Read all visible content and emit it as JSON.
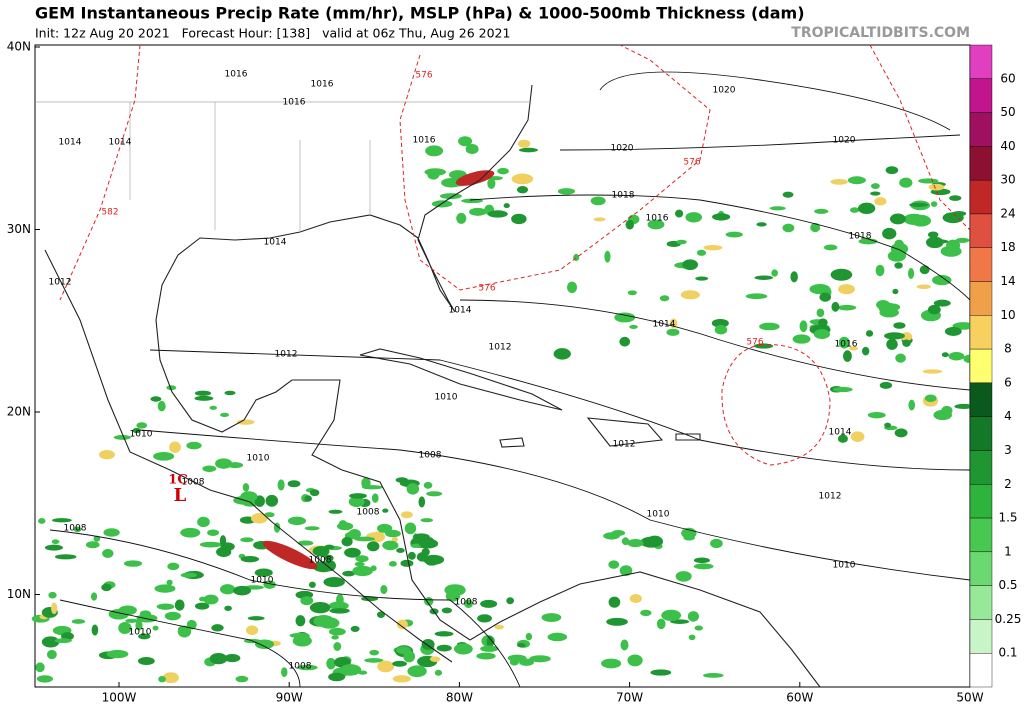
{
  "header": {
    "title": "GEM Instantaneous Precip Rate (mm/hr), MSLP (hPa) & 1000-500mb Thickness (dam)",
    "subtitle": "Init: 12z Aug 20 2021   Forecast Hour: [138]   valid at 06z Thu, Aug 26 2021",
    "source": "TROPICALTIDBITS.COM"
  },
  "map": {
    "lat_labels": [
      "40N",
      "30N",
      "20N",
      "10N"
    ],
    "lon_labels": [
      "100W",
      "90W",
      "80W",
      "70W",
      "60W",
      "50W"
    ],
    "storm_label": "L",
    "storm_number": "1C",
    "isobar_labels": [
      "1016",
      "1016",
      "1016",
      "1014",
      "1014",
      "1016",
      "1020",
      "1020",
      "1020",
      "1018",
      "1016",
      "1018",
      "1014",
      "1012",
      "1014",
      "1014",
      "1012",
      "1012",
      "1016",
      "1010",
      "1010",
      "1012",
      "1014",
      "1010",
      "1008",
      "1008",
      "1008",
      "1012",
      "1010",
      "1010",
      "1008",
      "1008",
      "1010",
      "1008",
      "1010",
      "1008"
    ],
    "thickness_labels": [
      "576",
      "582",
      "576",
      "576",
      "576"
    ]
  },
  "colorbar": {
    "labels": [
      "60",
      "50",
      "40",
      "30",
      "24",
      "18",
      "14",
      "10",
      "8",
      "6",
      "4",
      "3",
      "2",
      "1.5",
      "1",
      "0.5",
      "0.25",
      "0.1"
    ],
    "colors": [
      "#e040c0",
      "#c0158c",
      "#a01060",
      "#8c1030",
      "#c02828",
      "#e05040",
      "#f07848",
      "#f0a048",
      "#f8d060",
      "#ffff70",
      "#0a5a1e",
      "#137828",
      "#1f9632",
      "#2eb43c",
      "#48c850",
      "#6cd872",
      "#98e89a",
      "#c8f5c8",
      "#ffffff"
    ]
  }
}
